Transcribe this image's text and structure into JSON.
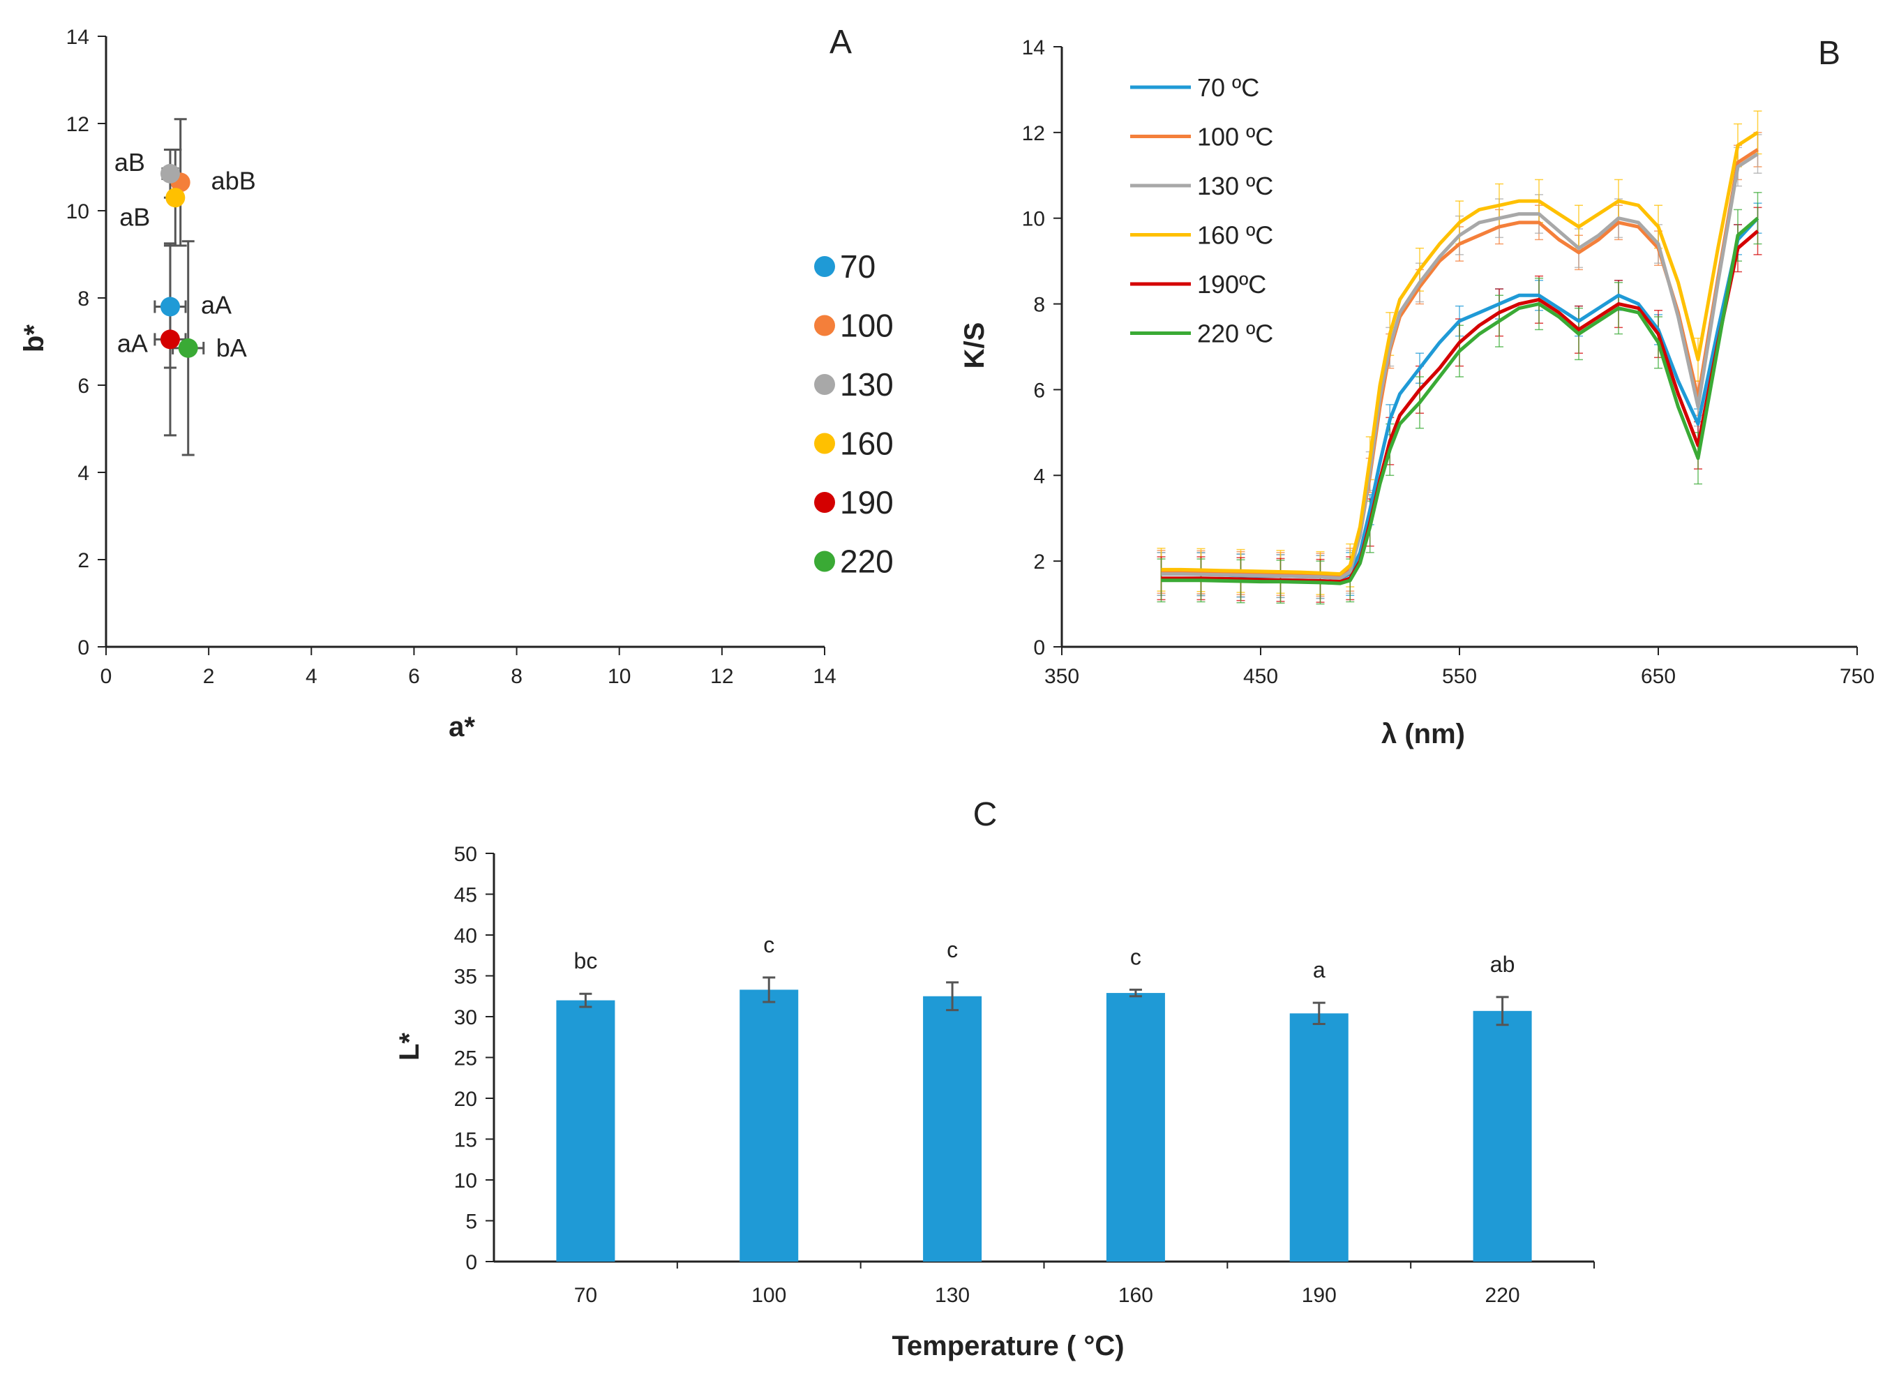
{
  "chart_data": [
    {
      "panel": "A",
      "type": "scatter",
      "title": "A",
      "xlabel": "a*",
      "ylabel": "b*",
      "xlim": [
        0,
        14
      ],
      "ylim": [
        0,
        14
      ],
      "xticks": [
        "0",
        "2",
        "4",
        "6",
        "8",
        "10",
        "12",
        "14"
      ],
      "yticks": [
        "0",
        "2",
        "4",
        "6",
        "8",
        "10",
        "12",
        "14"
      ],
      "legend_position": "right",
      "points": [
        {
          "name": "70",
          "color": "#1f9ad6",
          "x": 1.25,
          "y": 7.8,
          "xerr": 0.3,
          "yerr": 1.4,
          "label": "aA"
        },
        {
          "name": "100",
          "color": "#f47f3a",
          "x": 1.45,
          "y": 10.65,
          "xerr": 0.1,
          "yerr": 1.45,
          "label": "abB"
        },
        {
          "name": "130",
          "color": "#a8a8a8",
          "x": 1.25,
          "y": 10.85,
          "xerr": 0.15,
          "yerr": 0.55,
          "label": "aB"
        },
        {
          "name": "160",
          "color": "#ffc000",
          "x": 1.35,
          "y": 10.3,
          "xerr": 0.1,
          "yerr": 1.1,
          "label": "aB"
        },
        {
          "name": "190",
          "color": "#d40000",
          "x": 1.25,
          "y": 7.05,
          "xerr": 0.3,
          "yerr": 2.2,
          "label": "aA"
        },
        {
          "name": "220",
          "color": "#3aaa35",
          "x": 1.6,
          "y": 6.85,
          "xerr": 0.3,
          "yerr": 2.45,
          "label": "bA"
        }
      ]
    },
    {
      "panel": "B",
      "type": "line",
      "title": "B",
      "xlabel": "λ (nm)",
      "ylabel": "K/S",
      "xlim": [
        350,
        750
      ],
      "ylim": [
        0,
        14
      ],
      "xticks": [
        "350",
        "450",
        "550",
        "650",
        "750"
      ],
      "yticks": [
        "0",
        "2",
        "4",
        "6",
        "8",
        "10",
        "12",
        "14"
      ],
      "legend_position": "top-left",
      "x": [
        400,
        410,
        420,
        430,
        440,
        450,
        460,
        470,
        480,
        490,
        495,
        500,
        505,
        510,
        515,
        520,
        530,
        540,
        550,
        560,
        570,
        580,
        590,
        600,
        610,
        620,
        630,
        640,
        650,
        660,
        670,
        680,
        690,
        700
      ],
      "series": [
        {
          "name": "70 ºC",
          "color": "#1f9ad6",
          "values": [
            1.7,
            1.7,
            1.7,
            1.68,
            1.66,
            1.65,
            1.65,
            1.64,
            1.63,
            1.6,
            1.7,
            2.2,
            3.2,
            4.3,
            5.3,
            5.9,
            6.5,
            7.1,
            7.6,
            7.8,
            8.0,
            8.2,
            8.2,
            7.9,
            7.6,
            7.9,
            8.2,
            8.0,
            7.4,
            6.2,
            5.2,
            7.4,
            9.5,
            10.0
          ]
        },
        {
          "name": "100 ºC",
          "color": "#f47f3a",
          "values": [
            1.75,
            1.75,
            1.74,
            1.73,
            1.72,
            1.71,
            1.7,
            1.7,
            1.68,
            1.65,
            1.8,
            2.6,
            4.0,
            5.6,
            6.9,
            7.7,
            8.4,
            9.0,
            9.4,
            9.6,
            9.8,
            9.9,
            9.9,
            9.5,
            9.2,
            9.5,
            9.9,
            9.8,
            9.3,
            7.8,
            5.8,
            8.6,
            11.3,
            11.6
          ]
        },
        {
          "name": "130 ºC",
          "color": "#a8a8a8",
          "values": [
            1.7,
            1.7,
            1.69,
            1.68,
            1.67,
            1.66,
            1.65,
            1.64,
            1.63,
            1.6,
            1.75,
            2.6,
            4.1,
            5.8,
            7.0,
            7.8,
            8.5,
            9.1,
            9.6,
            9.9,
            10.0,
            10.1,
            10.1,
            9.7,
            9.3,
            9.6,
            10.0,
            9.9,
            9.4,
            7.7,
            5.6,
            8.5,
            11.2,
            11.5
          ]
        },
        {
          "name": "160 ºC",
          "color": "#ffc000",
          "values": [
            1.8,
            1.8,
            1.79,
            1.78,
            1.77,
            1.76,
            1.75,
            1.74,
            1.72,
            1.7,
            1.9,
            2.8,
            4.4,
            6.1,
            7.3,
            8.1,
            8.8,
            9.4,
            9.9,
            10.2,
            10.3,
            10.4,
            10.4,
            10.1,
            9.8,
            10.1,
            10.4,
            10.3,
            9.8,
            8.5,
            6.7,
            9.3,
            11.7,
            12.0
          ]
        },
        {
          "name": "190ºC",
          "color": "#d40000",
          "values": [
            1.6,
            1.6,
            1.6,
            1.59,
            1.58,
            1.57,
            1.56,
            1.55,
            1.54,
            1.52,
            1.6,
            2.0,
            2.9,
            3.9,
            4.8,
            5.4,
            6.0,
            6.5,
            7.1,
            7.5,
            7.8,
            8.0,
            8.1,
            7.8,
            7.4,
            7.7,
            8.0,
            7.9,
            7.3,
            5.9,
            4.7,
            7.1,
            9.3,
            9.7
          ]
        },
        {
          "name": "220 ºC",
          "color": "#3aaa35",
          "values": [
            1.55,
            1.55,
            1.55,
            1.54,
            1.53,
            1.52,
            1.52,
            1.51,
            1.5,
            1.48,
            1.55,
            1.95,
            2.8,
            3.8,
            4.6,
            5.2,
            5.7,
            6.3,
            6.9,
            7.3,
            7.6,
            7.9,
            8.0,
            7.7,
            7.3,
            7.6,
            7.9,
            7.8,
            7.1,
            5.6,
            4.4,
            7.0,
            9.6,
            10.0
          ]
        }
      ]
    },
    {
      "panel": "C",
      "type": "bar",
      "title": "C",
      "xlabel": "Temperature ( °C)",
      "ylabel": "L*",
      "ylim": [
        0,
        50
      ],
      "yticks": [
        "0",
        "5",
        "10",
        "15",
        "20",
        "25",
        "30",
        "35",
        "40",
        "45",
        "50"
      ],
      "bar_color": "#1f9ad6",
      "categories": [
        "70",
        "100",
        "130",
        "160",
        "190",
        "220"
      ],
      "values": [
        32.0,
        33.3,
        32.5,
        32.9,
        30.4,
        30.7
      ],
      "errors": [
        0.8,
        1.5,
        1.7,
        0.4,
        1.3,
        1.7
      ],
      "labels": [
        "bc",
        "c",
        "c",
        "c",
        "a",
        "ab"
      ]
    }
  ]
}
